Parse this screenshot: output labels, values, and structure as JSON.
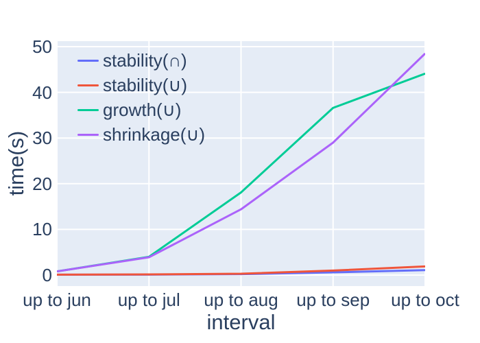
{
  "chart": {
    "x_axis": {
      "title": "interval",
      "tick_labels": [
        "up to jun",
        "up to jul",
        "up to aug",
        "up to sep",
        "up to oct"
      ]
    },
    "y_axis": {
      "title": "time(s)",
      "tick_labels": [
        "0",
        "10",
        "20",
        "30",
        "40",
        "50"
      ]
    },
    "colors": {
      "plot_background": "#E5ECF6",
      "paper_background": "#FFFFFF",
      "gridline": "#FFFFFF",
      "text": "#2A3F5F"
    }
  },
  "chart_data": {
    "type": "line",
    "title": "",
    "xlabel": "interval",
    "ylabel": "time(s)",
    "categories": [
      "up to jun",
      "up to jul",
      "up to aug",
      "up to sep",
      "up to oct"
    ],
    "series": [
      {
        "name": "stability(∩)",
        "color": "#636EFA",
        "values": [
          0.1,
          0.1,
          0.2,
          0.6,
          1.1
        ]
      },
      {
        "name": "stability(∪)",
        "color": "#EF553B",
        "values": [
          0.1,
          0.15,
          0.3,
          1.0,
          1.9
        ]
      },
      {
        "name": "growth(∪)",
        "color": "#00CC96",
        "values": [
          0.8,
          4.0,
          18.1,
          36.6,
          44.1
        ]
      },
      {
        "name": "shrinkage(∪)",
        "color": "#AB63FA",
        "values": [
          0.8,
          3.9,
          14.4,
          29.0,
          48.5
        ]
      }
    ],
    "y_ticks": [
      0,
      10,
      20,
      30,
      40,
      50
    ],
    "ylim": [
      -2.4,
      51.2
    ],
    "grid": true,
    "legend_position": "top-left"
  }
}
